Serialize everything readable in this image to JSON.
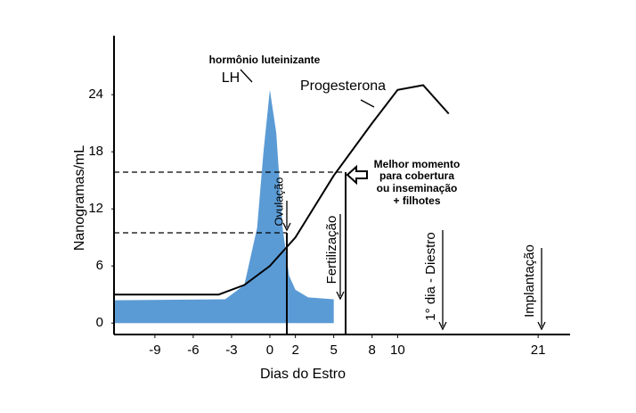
{
  "chart_data": {
    "type": "area_line",
    "xlabel": "Dias do Estro",
    "ylabel": "Nanogramas/mL",
    "xlim": [
      -12.2,
      23.5
    ],
    "ylim": [
      -1.2,
      30.2
    ],
    "xticks": [
      -9,
      -6,
      -3,
      0,
      2,
      5,
      8,
      10,
      21
    ],
    "yticks": [
      0,
      6,
      12,
      18,
      24
    ],
    "series": [
      {
        "name": "LH",
        "color": "#5b9bd5",
        "x": [
          -12.2,
          -3.5,
          -2,
          -1,
          -0.5,
          0,
          0.5,
          1,
          1.5,
          2,
          3,
          5
        ],
        "values": [
          2.4,
          2.5,
          4,
          10,
          18,
          24.5,
          20,
          10,
          5,
          3.5,
          2.7,
          2.5
        ]
      },
      {
        "name": "Progesterona",
        "color": "#000000",
        "x": [
          -12.2,
          -4,
          -2,
          0,
          2,
          5,
          8,
          10,
          12,
          14
        ],
        "values": [
          3.0,
          3.0,
          4,
          6,
          9,
          15.5,
          21,
          24.5,
          25,
          22
        ]
      }
    ],
    "annotations": {
      "lh_full": "hormônio luteinizante",
      "best": [
        "Melhor momento",
        "para cobertura",
        "ou inseminação",
        "+ filhotes"
      ],
      "ovulation": "Ovulação",
      "fertilization": "Fertilização",
      "diestrus": "1° dia - Diestro",
      "implantation": "Implantação"
    }
  }
}
